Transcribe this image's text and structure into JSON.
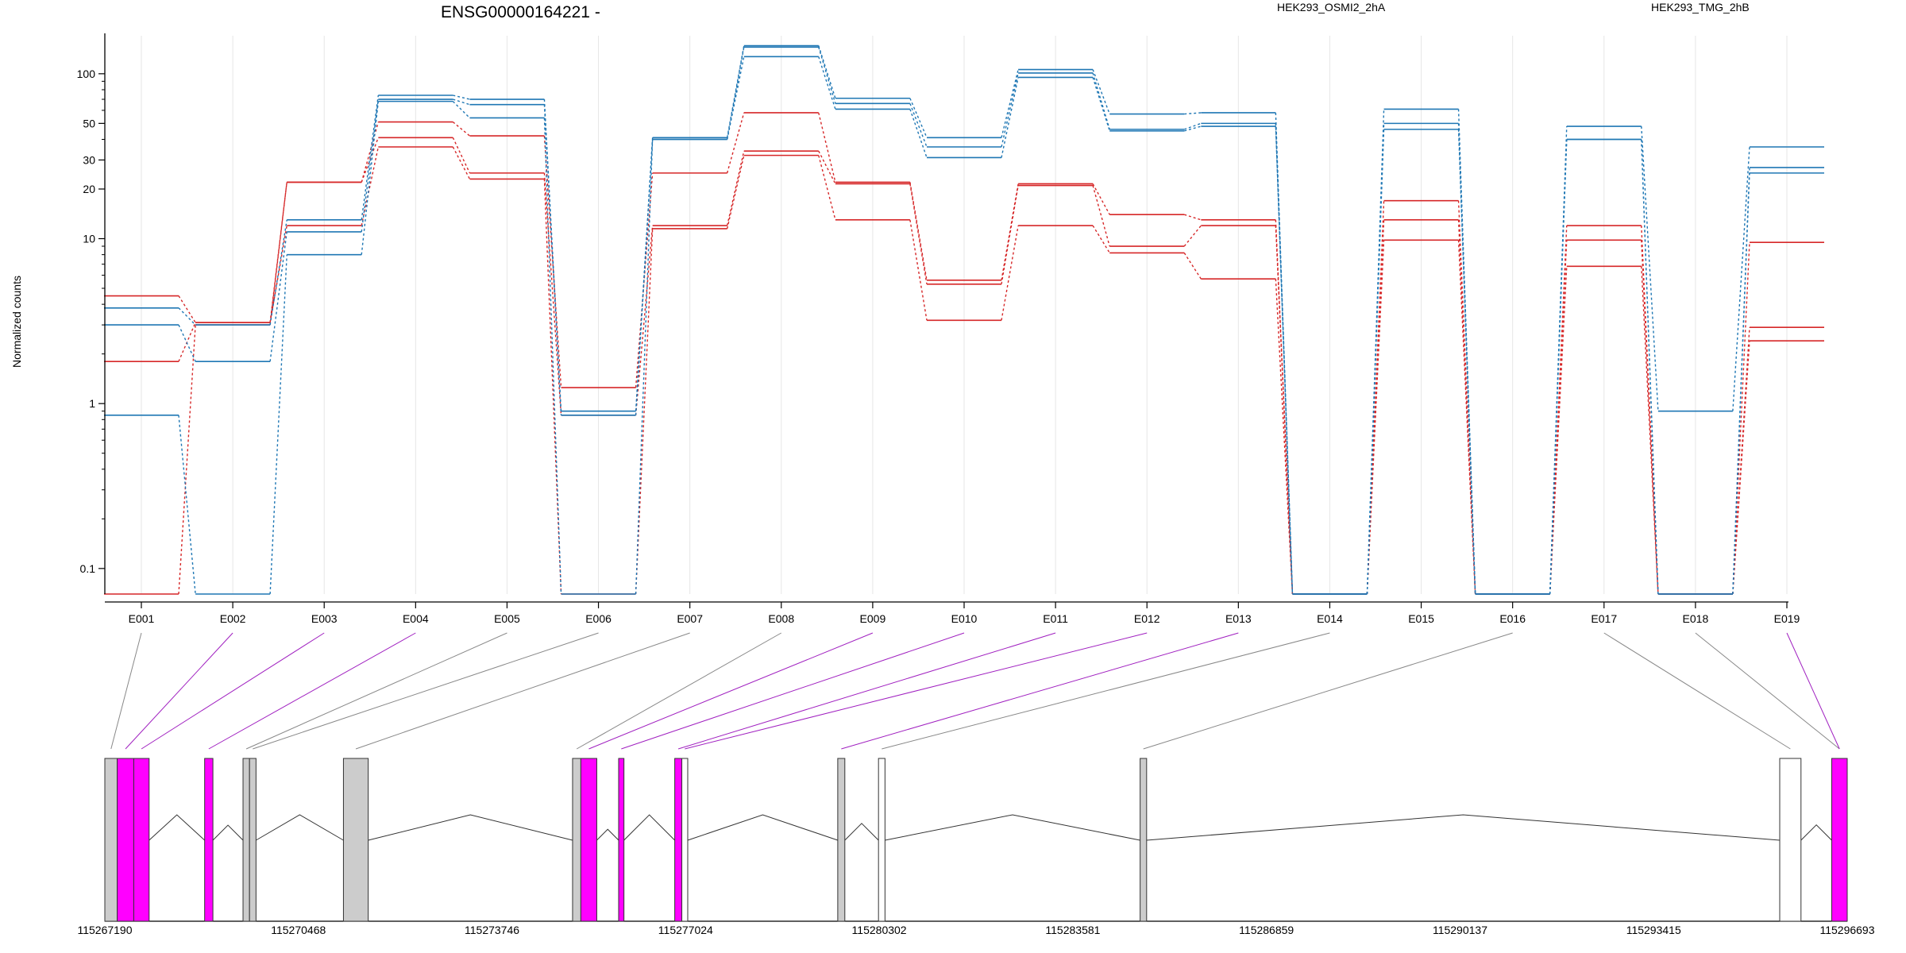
{
  "chart_data": {
    "type": "line",
    "title": "ENSG00000164221 -",
    "ylabel": "Normalized counts",
    "xlabel": "",
    "y_scale": "log",
    "ylim": [
      0.07,
      170
    ],
    "grid": "vertical lines at each exon",
    "legend_placement": "top-right",
    "categories": [
      "E001",
      "E002",
      "E003",
      "E004",
      "E005",
      "E006",
      "E007",
      "E008",
      "E009",
      "E010",
      "E011",
      "E012",
      "E013",
      "E014",
      "E015",
      "E016",
      "E017",
      "E018",
      "E019"
    ],
    "y_ticks": [
      {
        "value": 0.1,
        "label": "0.1"
      },
      {
        "value": 1,
        "label": "1"
      },
      {
        "value": 10,
        "label": "10"
      },
      {
        "value": 20,
        "label": "20"
      },
      {
        "value": 30,
        "label": "30"
      },
      {
        "value": 50,
        "label": "50"
      },
      {
        "value": 100,
        "label": "100"
      }
    ],
    "y_minor_ticks": [
      0.2,
      0.3,
      0.4,
      0.5,
      0.6,
      0.7,
      0.8,
      0.9,
      2,
      3,
      4,
      5,
      6,
      7,
      8,
      9,
      40,
      60,
      70,
      80,
      90
    ],
    "legend": [
      {
        "name": "HEK293_OSMI2_2hA",
        "color": "#d62728"
      },
      {
        "name": "HEK293_TMG_2hB",
        "color": "#1f77b4"
      }
    ],
    "series": [
      {
        "group": "HEK293_OSMI2_2hA",
        "color": "#d62728",
        "values": [
          4.5,
          3.1,
          22,
          51,
          42,
          1.25,
          25,
          58,
          22,
          5.6,
          21.5,
          14,
          13,
          0.07,
          17,
          0.07,
          12,
          0.07,
          9.5
        ]
      },
      {
        "group": "HEK293_OSMI2_2hA",
        "color": "#d62728",
        "values": [
          0.07,
          3.0,
          22,
          41,
          25,
          0.85,
          12,
          34,
          21.5,
          5.3,
          21,
          9,
          12,
          0.07,
          13,
          0.07,
          9.8,
          0.07,
          2.9
        ]
      },
      {
        "group": "HEK293_OSMI2_2hA",
        "color": "#d62728",
        "values": [
          1.8,
          3.1,
          12,
          36,
          23,
          0.07,
          11.5,
          32,
          13,
          3.2,
          12,
          8.2,
          5.7,
          0.07,
          9.8,
          0.07,
          6.8,
          0.07,
          2.4
        ]
      },
      {
        "group": "HEK293_TMG_2hB",
        "color": "#1f77b4",
        "values": [
          3.8,
          3.0,
          13,
          74,
          70,
          0.9,
          41,
          148,
          71,
          41,
          106,
          57,
          58,
          0.07,
          61,
          0.07,
          48,
          0.9,
          36
        ]
      },
      {
        "group": "HEK293_TMG_2hB",
        "color": "#1f77b4",
        "values": [
          3.0,
          1.8,
          11,
          70,
          65,
          0.85,
          40,
          145,
          66,
          36,
          101,
          46,
          50,
          0.07,
          50,
          0.07,
          40,
          0.07,
          27
        ]
      },
      {
        "group": "HEK293_TMG_2hB",
        "color": "#1f77b4",
        "values": [
          0.85,
          0.07,
          8,
          68,
          54,
          0.07,
          40,
          127,
          61,
          31,
          95,
          45,
          48,
          0.07,
          46,
          0.07,
          40,
          0.07,
          25
        ]
      }
    ]
  },
  "gene_model": {
    "coordinate_ticks": [
      {
        "pos": 115267190,
        "label": "115267190"
      },
      {
        "pos": 115270468,
        "label": "115270468"
      },
      {
        "pos": 115273746,
        "label": "115273746"
      },
      {
        "pos": 115277024,
        "label": "115277024"
      },
      {
        "pos": 115280302,
        "label": "115280302"
      },
      {
        "pos": 115283581,
        "label": "115283581"
      },
      {
        "pos": 115286859,
        "label": "115286859"
      },
      {
        "pos": 115290137,
        "label": "115290137"
      },
      {
        "pos": 115293415,
        "label": "115293415"
      },
      {
        "pos": 115296693,
        "label": "115296693"
      }
    ],
    "range": [
      115267190,
      115296693
    ],
    "colors": {
      "gray": "#cccccc",
      "highlight": "#ff00ff",
      "plain": "#ffffff"
    },
    "exons": [
      {
        "start": 115267190,
        "end": 115267400,
        "fill": "gray",
        "link": 0
      },
      {
        "start": 115267400,
        "end": 115267680,
        "fill": "highlight",
        "link": 1
      },
      {
        "start": 115267680,
        "end": 115267940,
        "fill": "highlight",
        "link": 2
      },
      {
        "start": 115268880,
        "end": 115269020,
        "fill": "highlight",
        "link": 3
      },
      {
        "start": 115269530,
        "end": 115269640,
        "fill": "gray",
        "link": 4
      },
      {
        "start": 115269640,
        "end": 115269750,
        "fill": "gray",
        "link": 5
      },
      {
        "start": 115271230,
        "end": 115271650,
        "fill": "gray",
        "link": 6
      },
      {
        "start": 115275110,
        "end": 115275250,
        "fill": "gray",
        "link": 7
      },
      {
        "start": 115275250,
        "end": 115275520,
        "fill": "highlight",
        "link": 8
      },
      {
        "start": 115275890,
        "end": 115275980,
        "fill": "highlight",
        "link": 9
      },
      {
        "start": 115276840,
        "end": 115276960,
        "fill": "highlight",
        "link": 10
      },
      {
        "start": 115276960,
        "end": 115277060,
        "fill": "plain",
        "link": 11
      },
      {
        "start": 115279600,
        "end": 115279720,
        "fill": "gray",
        "link": 12
      },
      {
        "start": 115280290,
        "end": 115280400,
        "fill": "plain",
        "link": 13
      },
      {
        "start": 115284720,
        "end": 115284830,
        "fill": "gray",
        "link": 14
      },
      {
        "start": 115295550,
        "end": 115295910,
        "fill": "plain",
        "link": 15
      },
      {
        "start": 115296430,
        "end": 115296693,
        "fill": "highlight",
        "link": 16
      }
    ],
    "links": [
      {
        "exon": "E001",
        "color": "#888888"
      },
      {
        "exon": "E002",
        "color": "#a020c0"
      },
      {
        "exon": "E003",
        "color": "#a020c0"
      },
      {
        "exon": "E004",
        "color": "#a020c0"
      },
      {
        "exon": "E005",
        "color": "#888888"
      },
      {
        "exon": "E006",
        "color": "#888888"
      },
      {
        "exon": "E007",
        "color": "#888888"
      },
      {
        "exon": "E008",
        "color": "#888888"
      },
      {
        "exon": "E009",
        "color": "#a020c0"
      },
      {
        "exon": "E010",
        "color": "#a020c0"
      },
      {
        "exon": "E011",
        "color": "#a020c0"
      },
      {
        "exon": "E012",
        "color": "#a020c0"
      },
      {
        "exon": "E013",
        "color": "#a020c0"
      },
      {
        "exon": "E014",
        "color": "#888888"
      },
      {
        "exon": "E016",
        "color": "#888888"
      },
      {
        "exon": "E017",
        "color": "#888888"
      },
      {
        "exon": "E018",
        "color": "#888888"
      },
      {
        "exon": "E019",
        "color": "#a020c0"
      }
    ]
  }
}
